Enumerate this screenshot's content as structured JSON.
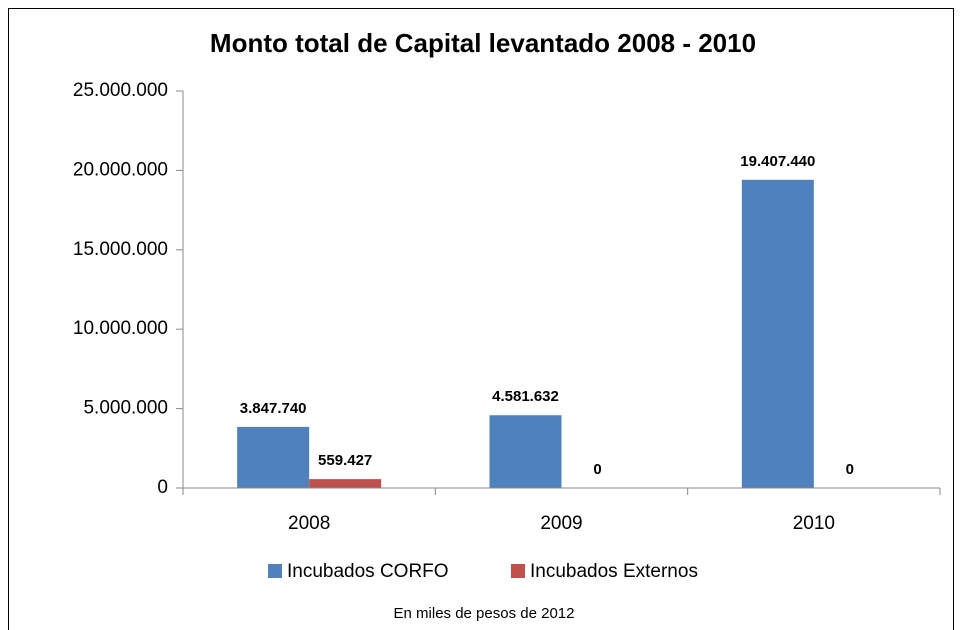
{
  "chart_data": {
    "type": "bar",
    "title": "Monto total de Capital levantado 2008 - 2010",
    "caption": "En miles de pesos de 2012",
    "categories": [
      "2008",
      "2009",
      "2010"
    ],
    "series": [
      {
        "name": "Incubados CORFO",
        "color": "#4f81bd",
        "values": [
          3847740,
          4581632,
          19407440
        ],
        "value_labels": [
          "3.847.740",
          "4.581.632",
          "19.407.440"
        ]
      },
      {
        "name": "Incubados Externos",
        "color": "#c0504d",
        "values": [
          559427,
          0,
          0
        ],
        "value_labels": [
          "559.427",
          "0",
          "0"
        ]
      }
    ],
    "ylim": [
      0,
      25000000
    ],
    "yticks": [
      0,
      {
        "value": 5000000,
        "label": "5.000.000"
      },
      {
        "value": 10000000,
        "label": "10.000.000"
      },
      {
        "value": 15000000,
        "label": "15.000.000"
      },
      {
        "value": 20000000,
        "label": "20.000.000"
      },
      {
        "value": 25000000,
        "label": "25.000.000"
      }
    ],
    "grid": false,
    "legend": "bottom"
  }
}
